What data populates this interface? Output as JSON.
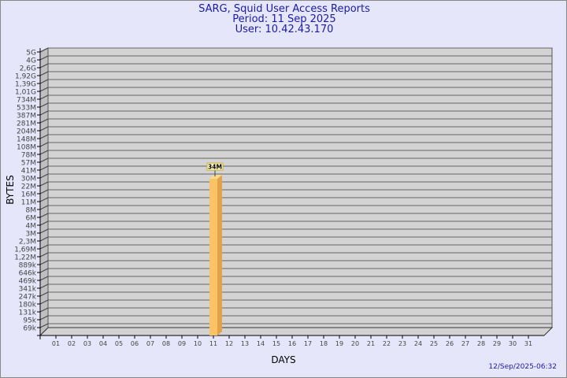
{
  "header": {
    "title": "SARG, Squid User Access Reports",
    "period": "Period: 11 Sep 2025",
    "user": "User: 10.42.43.170"
  },
  "footer": {
    "timestamp": "12/Sep/2025-06:32"
  },
  "colors": {
    "background": "#e6e6fa",
    "plot": "#d3d3d3",
    "bar": "#fcc266",
    "bar_side": "#e0a24a",
    "title": "#1a1aa6"
  },
  "chart_data": {
    "type": "bar",
    "xlabel": "DAYS",
    "ylabel": "BYTES",
    "categories": [
      "01",
      "02",
      "03",
      "04",
      "05",
      "06",
      "07",
      "08",
      "09",
      "10",
      "11",
      "12",
      "13",
      "14",
      "15",
      "16",
      "17",
      "18",
      "19",
      "20",
      "21",
      "22",
      "23",
      "24",
      "25",
      "26",
      "27",
      "28",
      "29",
      "30",
      "31"
    ],
    "values": [
      null,
      null,
      null,
      null,
      null,
      null,
      null,
      null,
      null,
      null,
      34000000,
      null,
      null,
      null,
      null,
      null,
      null,
      null,
      null,
      null,
      null,
      null,
      null,
      null,
      null,
      null,
      null,
      null,
      null,
      null,
      null
    ],
    "data_labels": {
      "11": "34M"
    },
    "y_scale": "log",
    "y_tick_labels": [
      "5G",
      "4G",
      "2,6G",
      "1,92G",
      "1,39G",
      "1,01G",
      "734M",
      "533M",
      "387M",
      "281M",
      "204M",
      "148M",
      "108M",
      "78M",
      "57M",
      "41M",
      "30M",
      "22M",
      "16M",
      "11M",
      "8M",
      "6M",
      "4M",
      "3M",
      "2,3M",
      "1,69M",
      "1,22M",
      "889k",
      "646k",
      "469k",
      "341k",
      "247k",
      "180k",
      "131k",
      "95k",
      "69k"
    ],
    "grid": true
  }
}
